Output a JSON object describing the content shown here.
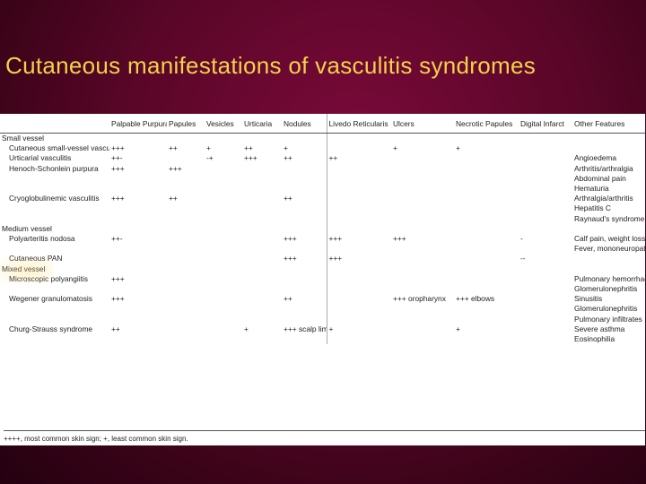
{
  "title": "Cutaneous manifestations of vasculitis syndromes",
  "columns": [
    "",
    "Palpable Purpura",
    "Papules",
    "Vesicles",
    "Urticaria",
    "Nodules",
    "Livedo Reticularis",
    "Ulcers",
    "Necrotic Papules",
    "Digital Infarct",
    "Other Features"
  ],
  "rows": [
    {
      "type": "section",
      "cells": [
        "Small vessel",
        "",
        "",
        "",
        "",
        "",
        "",
        "",
        "",
        "",
        ""
      ]
    },
    {
      "type": "item",
      "cells": [
        "Cutaneous small-vessel vasculitis",
        "+++",
        "++",
        "+",
        "++",
        "+",
        "",
        "+",
        "+",
        "",
        ""
      ]
    },
    {
      "type": "item",
      "cells": [
        "Urticarial vasculitis",
        "++-",
        "",
        "-+",
        "+++",
        "++",
        "++",
        "",
        "",
        "",
        "Angioedema"
      ]
    },
    {
      "type": "item",
      "cells": [
        "Henoch-Schonlein purpura",
        "+++",
        "+++",
        "",
        "",
        "",
        "",
        "",
        "",
        "",
        "Arthritis/arthralgia"
      ]
    },
    {
      "type": "item",
      "cells": [
        "",
        "",
        "",
        "",
        "",
        "",
        "",
        "",
        "",
        "",
        "Abdominal pain"
      ]
    },
    {
      "type": "item",
      "cells": [
        "",
        "",
        "",
        "",
        "",
        "",
        "",
        "",
        "",
        "",
        "Hematuria"
      ]
    },
    {
      "type": "item",
      "cells": [
        "Cryoglobulinemic vasculitis",
        "+++",
        "++",
        "",
        "",
        "++",
        "",
        "",
        "",
        "",
        "Arthralgia/arthritis"
      ]
    },
    {
      "type": "item",
      "cells": [
        "",
        "",
        "",
        "",
        "",
        "",
        "",
        "",
        "",
        "",
        "Hepatitis C"
      ]
    },
    {
      "type": "item",
      "cells": [
        "",
        "",
        "",
        "",
        "",
        "",
        "",
        "",
        "",
        "",
        "Raynaud's syndrome"
      ]
    },
    {
      "type": "section",
      "cells": [
        "Medium vessel",
        "",
        "",
        "",
        "",
        "",
        "",
        "",
        "",
        "",
        ""
      ]
    },
    {
      "type": "item",
      "cells": [
        "Polyarteritis nodosa",
        "++-",
        "",
        "",
        "",
        "+++",
        "+++",
        "+++",
        "",
        "-",
        "Calf pain, weight loss"
      ]
    },
    {
      "type": "item",
      "cells": [
        "",
        "",
        "",
        "",
        "",
        "",
        "",
        "",
        "",
        "",
        "Fever, mononeuropathy"
      ]
    },
    {
      "type": "item",
      "cells": [
        "Cutaneous PAN",
        "",
        "",
        "",
        "",
        "+++",
        "+++",
        "",
        "",
        "--",
        ""
      ]
    },
    {
      "type": "section",
      "cells": [
        "Mixed vessel",
        "",
        "",
        "",
        "",
        "",
        "",
        "",
        "",
        "",
        ""
      ]
    },
    {
      "type": "item",
      "cells": [
        "Microscopic polyangiitis",
        "+++",
        "",
        "",
        "",
        "",
        "",
        "",
        "",
        "",
        "Pulmonary hemorrhage"
      ]
    },
    {
      "type": "item",
      "cells": [
        "",
        "",
        "",
        "",
        "",
        "",
        "",
        "",
        "",
        "",
        "Glomerulonephritis"
      ]
    },
    {
      "type": "item",
      "cells": [
        "Wegener granulomatosis",
        "+++",
        "",
        "",
        "",
        "++",
        "",
        "+++ oropharynx",
        "+++ elbows",
        "",
        "Sinusitis"
      ]
    },
    {
      "type": "item",
      "cells": [
        "",
        "",
        "",
        "",
        "",
        "",
        "",
        "",
        "",
        "",
        "Glomerulonephritis"
      ]
    },
    {
      "type": "item",
      "cells": [
        "",
        "",
        "",
        "",
        "",
        "",
        "",
        "",
        "",
        "",
        "Pulmonary infiltrates"
      ]
    },
    {
      "type": "item",
      "cells": [
        "Churg-Strauss syndrome",
        "++",
        "",
        "",
        "+",
        "+++ scalp limbs",
        "+",
        "",
        "+",
        "",
        "Severe asthma"
      ]
    },
    {
      "type": "item",
      "cells": [
        "",
        "",
        "",
        "",
        "",
        "",
        "",
        "",
        "",
        "",
        "Eosinophilia"
      ]
    }
  ],
  "footnote": "++++, most common skin sign; +, least common skin sign."
}
